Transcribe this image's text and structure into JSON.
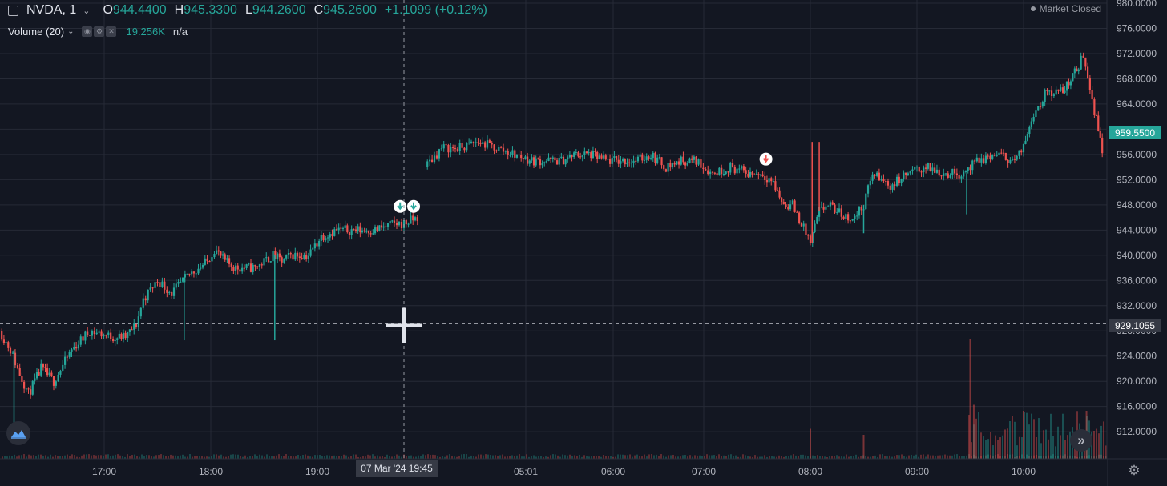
{
  "legend": {
    "symbol": "NVDA, 1",
    "open_label": "O",
    "open": "944.4400",
    "high_label": "H",
    "high": "945.3300",
    "low_label": "L",
    "low": "944.2600",
    "close_label": "C",
    "close": "945.2600",
    "change": "+1.1099 (+0.12%)"
  },
  "volume_legend": {
    "label": "Volume (20)",
    "value": "19.256K",
    "na": "n/a"
  },
  "market_status": "Market Closed",
  "current_price": "959.5500",
  "crosshair": {
    "price": "929.1055",
    "time": "07 Mar '24   19:45"
  },
  "colors": {
    "background": "#131722",
    "up": "#26a69a",
    "down": "#ef5350",
    "grid": "#262a36"
  },
  "icons": {
    "menu": "collapse-icon",
    "logo": "tradingview-logo-icon",
    "scroll": "scroll-right-icon",
    "settings": "gear-icon",
    "signal": "arrow-down-marker-icon"
  },
  "chart_data": {
    "type": "candlestick",
    "price_axis": {
      "ticks": [
        "912.0000",
        "916.0000",
        "920.0000",
        "924.0000",
        "928.0000",
        "932.0000",
        "936.0000",
        "940.0000",
        "944.0000",
        "948.0000",
        "952.0000",
        "956.0000",
        "960.0000",
        "964.0000",
        "968.0000",
        "972.0000",
        "976.0000",
        "980.0000"
      ],
      "range": [
        909,
        980
      ]
    },
    "time_axis": {
      "ticks": [
        "17:00",
        "18:00",
        "19:00",
        "05:01",
        "06:00",
        "07:00",
        "08:00",
        "09:00",
        "10:00"
      ]
    },
    "price_path": [
      [
        "16:02",
        928
      ],
      [
        "16:08",
        925
      ],
      [
        "16:12",
        922
      ],
      [
        "16:18",
        918
      ],
      [
        "16:25",
        922
      ],
      [
        "16:32",
        920
      ],
      [
        "16:42",
        925
      ],
      [
        "16:52",
        928
      ],
      [
        "17:05",
        927
      ],
      [
        "17:12",
        927
      ],
      [
        "17:18",
        929
      ],
      [
        "17:22",
        933
      ],
      [
        "17:30",
        936
      ],
      [
        "17:38",
        934
      ],
      [
        "17:48",
        937
      ],
      [
        "17:58",
        939
      ],
      [
        "18:02",
        941
      ],
      [
        "18:08",
        939
      ],
      [
        "18:14",
        938
      ],
      [
        "18:25",
        938
      ],
      [
        "18:35",
        940
      ],
      [
        "18:40",
        939
      ],
      [
        "18:45",
        940
      ],
      [
        "18:55",
        940
      ],
      [
        "19:02",
        943
      ],
      [
        "19:10",
        944
      ],
      [
        "19:20",
        944
      ],
      [
        "19:30",
        944
      ],
      [
        "19:40",
        945
      ],
      [
        "19:45",
        945
      ],
      [
        "19:52",
        946
      ],
      [
        "04:06",
        954
      ],
      [
        "04:15",
        957
      ],
      [
        "04:25",
        957
      ],
      [
        "04:35",
        958
      ],
      [
        "04:45",
        957
      ],
      [
        "04:55",
        956
      ],
      [
        "05:05",
        955
      ],
      [
        "05:15",
        955
      ],
      [
        "05:25",
        955
      ],
      [
        "05:35",
        956
      ],
      [
        "05:45",
        956
      ],
      [
        "05:55",
        955
      ],
      [
        "06:05",
        955
      ],
      [
        "06:15",
        955
      ],
      [
        "06:25",
        956
      ],
      [
        "06:35",
        954
      ],
      [
        "06:45",
        955
      ],
      [
        "06:55",
        955
      ],
      [
        "07:05",
        953
      ],
      [
        "07:15",
        954
      ],
      [
        "07:25",
        953
      ],
      [
        "07:32",
        953
      ],
      [
        "07:38",
        952
      ],
      [
        "07:45",
        948
      ],
      [
        "07:50",
        948
      ],
      [
        "07:55",
        945
      ],
      [
        "08:00",
        942
      ],
      [
        "08:05",
        947
      ],
      [
        "08:10",
        948
      ],
      [
        "08:15",
        947
      ],
      [
        "08:20",
        946
      ],
      [
        "08:25",
        946
      ],
      [
        "08:30",
        948
      ],
      [
        "08:35",
        953
      ],
      [
        "08:45",
        951
      ],
      [
        "08:55",
        953
      ],
      [
        "09:05",
        954
      ],
      [
        "09:15",
        953
      ],
      [
        "09:25",
        953
      ],
      [
        "09:35",
        955
      ],
      [
        "09:45",
        956
      ],
      [
        "09:55",
        955
      ],
      [
        "10:00",
        957
      ],
      [
        "10:05",
        962
      ],
      [
        "10:15",
        966
      ],
      [
        "10:25",
        966
      ],
      [
        "10:30",
        968
      ],
      [
        "10:35",
        970
      ],
      [
        "10:38",
        972
      ],
      [
        "10:45",
        963
      ],
      [
        "10:50",
        957
      ]
    ],
    "spikes": [
      {
        "time": "17:45",
        "low": 926.5
      },
      {
        "time": "18:36",
        "low": 926.5
      },
      {
        "time": "16:10",
        "low": 913
      },
      {
        "time": "08:01",
        "high": 958
      },
      {
        "time": "08:05",
        "high": 958
      },
      {
        "time": "08:30",
        "low": 943.5
      },
      {
        "time": "09:28",
        "low": 946.5
      }
    ],
    "markers": [
      {
        "time": "19:43",
        "price": 947,
        "type": "signal",
        "color": "up"
      },
      {
        "time": "19:50",
        "price": 947,
        "type": "signal",
        "color": "up"
      },
      {
        "time": "07:35",
        "price": 954.5,
        "type": "signal",
        "color": "down"
      }
    ],
    "volume": {
      "baseline": "low",
      "spikes": [
        {
          "time": "08:00",
          "level": 0.25
        },
        {
          "time": "08:30",
          "level": 0.2
        },
        {
          "time": "09:30",
          "level": 1.0
        },
        {
          "time": "09:32",
          "level": 0.45
        },
        {
          "time": "10:00",
          "level": 0.4
        },
        {
          "time": "10:40",
          "level": 0.4
        }
      ]
    },
    "grid": true,
    "crosshair": {
      "price": 929.1055,
      "time": "19:45"
    }
  }
}
